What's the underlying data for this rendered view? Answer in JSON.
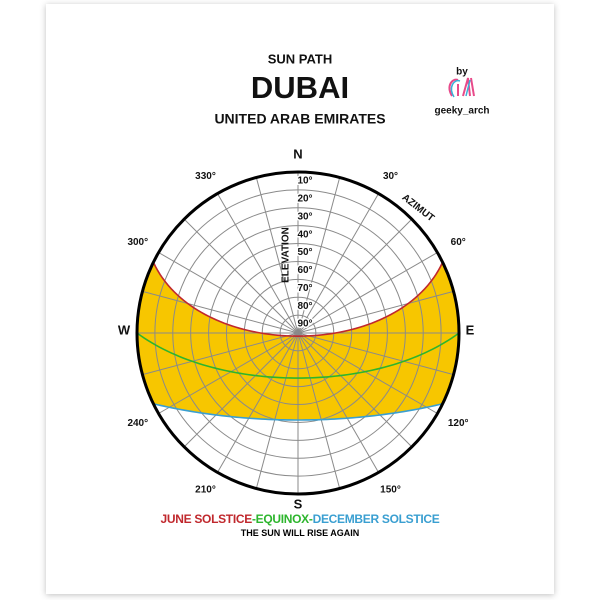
{
  "header": {
    "subtitle": "SUN PATH",
    "title": "DUBAI",
    "country": "UNITED ARAB EMIRATES"
  },
  "credit": {
    "by": "by",
    "handle": "geeky_arch"
  },
  "diagram": {
    "cardinals": {
      "N": "N",
      "E": "E",
      "S": "S",
      "W": "W"
    },
    "azimuth_title": "AZIMUT",
    "elevation_title": "ELEVATION",
    "azimuth_labels": [
      {
        "value": 30,
        "label": "30°"
      },
      {
        "value": 60,
        "label": "60°"
      },
      {
        "value": 120,
        "label": "120°"
      },
      {
        "value": 150,
        "label": "150°"
      },
      {
        "value": 210,
        "label": "210°"
      },
      {
        "value": 240,
        "label": "240°"
      },
      {
        "value": 300,
        "label": "300°"
      },
      {
        "value": 330,
        "label": "330°"
      }
    ],
    "elevation_labels": [
      {
        "value": 10,
        "label": "10°"
      },
      {
        "value": 20,
        "label": "20°"
      },
      {
        "value": 30,
        "label": "30°"
      },
      {
        "value": 40,
        "label": "40°"
      },
      {
        "value": 50,
        "label": "50°"
      },
      {
        "value": 60,
        "label": "60°"
      },
      {
        "value": 70,
        "label": "70°"
      },
      {
        "value": 80,
        "label": "80°"
      },
      {
        "value": 90,
        "label": "90°"
      }
    ]
  },
  "legend": {
    "june": "JUNE SOLSTICE",
    "separator": "-",
    "equinox": "EQUINOX",
    "december": "DECEMBER SOLSTICE"
  },
  "tagline": "THE SUN WILL RISE AGAIN"
}
